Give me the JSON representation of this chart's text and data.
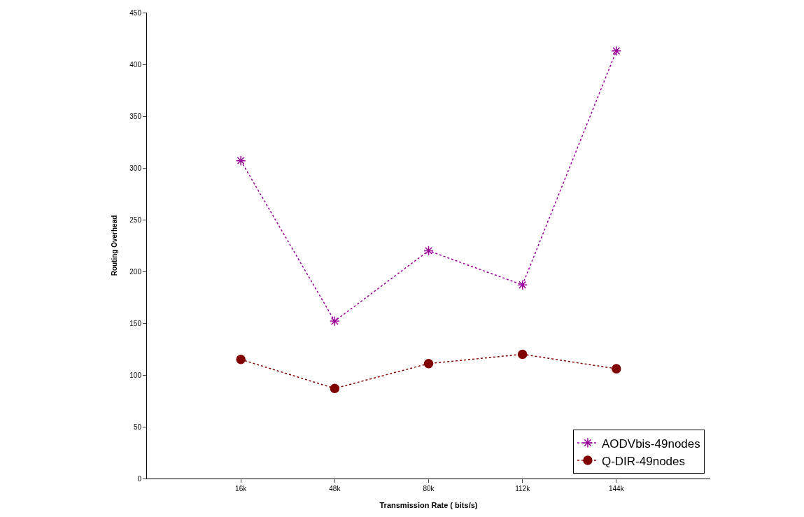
{
  "chart_data": {
    "type": "line",
    "xlabel": "Transmission Rate ( bits/s)",
    "ylabel": "Routing Overhead",
    "categories": [
      "16k",
      "48k",
      "80k",
      "112k",
      "144k"
    ],
    "series": [
      {
        "name": "AODVbis-49nodes",
        "color": "#990099",
        "marker": "cross",
        "values": [
          307,
          152,
          220,
          187,
          413
        ]
      },
      {
        "name": "Q-DIR-49nodes",
        "color": "#800000",
        "marker": "circle",
        "values": [
          115,
          87,
          111,
          120,
          106
        ]
      }
    ],
    "ylim": [
      0,
      450
    ],
    "yticks": [
      0,
      50,
      100,
      150,
      200,
      250,
      300,
      350,
      400,
      450
    ],
    "legend": "bottom right",
    "line_style": "dotted"
  }
}
